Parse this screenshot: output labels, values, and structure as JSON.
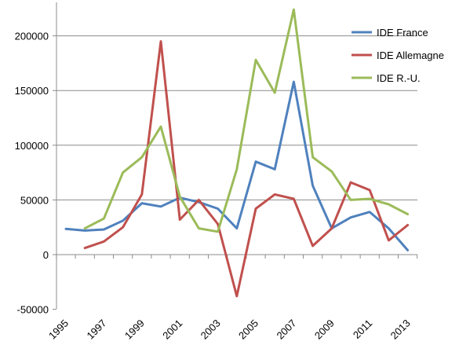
{
  "chart_data": {
    "type": "line",
    "title": "",
    "xlabel": "",
    "ylabel": "",
    "x": [
      1995,
      1996,
      1997,
      1998,
      1999,
      2000,
      2001,
      2002,
      2003,
      2004,
      2005,
      2006,
      2007,
      2008,
      2009,
      2010,
      2011,
      2012,
      2013
    ],
    "x_tick_labels": [
      "1995",
      "1997",
      "1999",
      "2001",
      "2003",
      "2005",
      "2007",
      "2009",
      "2011",
      "2013"
    ],
    "y_tick_labels": [
      "-50000",
      "0",
      "50000",
      "100000",
      "150000",
      "200000"
    ],
    "ylim": [
      -50000,
      230000
    ],
    "grid": "horizontal",
    "legend_position": "top-right",
    "series": [
      {
        "name": "IDE France",
        "color": "#4f81bd",
        "values": [
          23500,
          22000,
          23000,
          31000,
          47000,
          44000,
          52000,
          48000,
          42000,
          24000,
          85000,
          78000,
          158000,
          63000,
          24000,
          34000,
          39000,
          24000,
          4000
        ]
      },
      {
        "name": "IDE Allemagne",
        "color": "#c0504d",
        "values": [
          null,
          6000,
          12000,
          25000,
          55000,
          195000,
          32000,
          50000,
          28000,
          -38000,
          42000,
          55000,
          51000,
          8000,
          24000,
          66000,
          59000,
          13000,
          27000
        ]
      },
      {
        "name": "IDE R.-U.",
        "color": "#9bbb59",
        "values": [
          null,
          24000,
          33000,
          75000,
          89000,
          117000,
          53000,
          24000,
          21000,
          78000,
          178000,
          148000,
          224000,
          89000,
          76000,
          50000,
          51000,
          46000,
          37000
        ]
      }
    ]
  }
}
